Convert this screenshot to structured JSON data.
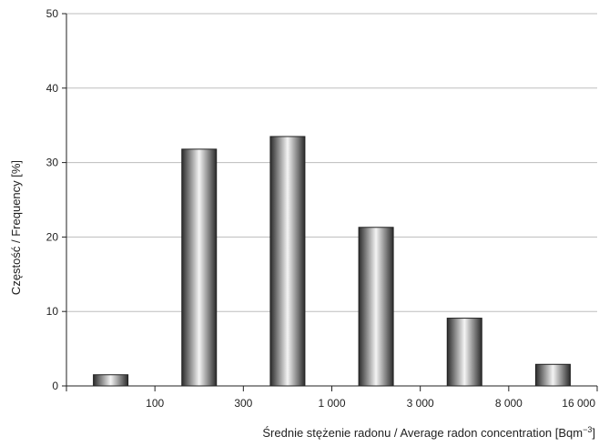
{
  "chart_data": {
    "type": "bar",
    "title": "",
    "ylabel": "Częstość / Frequency [%]",
    "xlabel": "Średnie stężenie radonu / Average radon concentration [Bqm",
    "xlabel_sup": "−3",
    "xlabel_close": "]",
    "ylim": [
      0,
      50
    ],
    "yticks": [
      "0",
      "10",
      "20",
      "30",
      "40",
      "50"
    ],
    "xtick_labels": [
      "100",
      "300",
      "1 000",
      "3 000",
      "8 000",
      "16 000"
    ],
    "bin_count": 6,
    "values": [
      1.5,
      31.8,
      33.5,
      21.3,
      9.1,
      2.9
    ],
    "grid": true,
    "bar_gradient": [
      "#2b2b2b",
      "#f4f4f4",
      "#2b2b2b"
    ]
  }
}
